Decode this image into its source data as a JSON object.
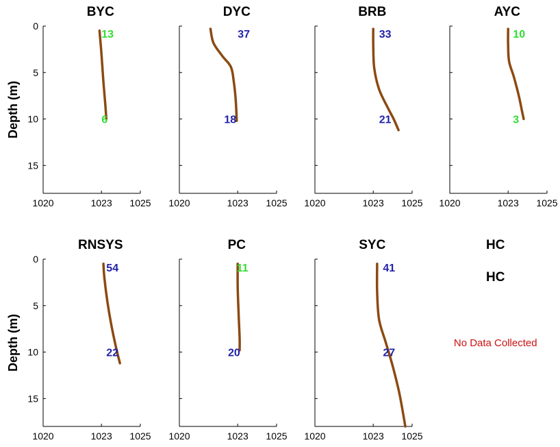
{
  "chart_data": {
    "type": "line",
    "ylabel": "Depth (m)",
    "y_reversed": true,
    "xlim": [
      1020,
      1025
    ],
    "ylim": [
      0,
      18
    ],
    "xticks": [
      1020,
      1023,
      1025
    ],
    "yticks": [
      0,
      5,
      10,
      15
    ],
    "line_color": "#8B4A12",
    "label_colors": {
      "green": "#33dd33",
      "blue": "#2222aa"
    },
    "no_data_color": "#cc1111",
    "panels": [
      {
        "title": "BYC",
        "points": [
          [
            1022.9,
            0.5
          ],
          [
            1023.0,
            3
          ],
          [
            1023.1,
            6
          ],
          [
            1023.2,
            8.5
          ],
          [
            1023.25,
            10
          ]
        ],
        "annotations": [
          {
            "text": "13",
            "x": 1023.0,
            "y": 0.8,
            "color": "green"
          },
          {
            "text": "6",
            "x": 1023.0,
            "y": 10.0,
            "color": "green"
          }
        ]
      },
      {
        "title": "DYC",
        "points": [
          [
            1021.6,
            0.3
          ],
          [
            1021.75,
            1.8
          ],
          [
            1022.2,
            3.2
          ],
          [
            1022.65,
            4.4
          ],
          [
            1022.8,
            6
          ],
          [
            1022.9,
            8
          ],
          [
            1022.95,
            10.2
          ]
        ],
        "annotations": [
          {
            "text": "37",
            "x": 1023.0,
            "y": 0.8,
            "color": "blue"
          },
          {
            "text": "18",
            "x": 1022.3,
            "y": 10.0,
            "color": "blue"
          }
        ]
      },
      {
        "title": "BRB",
        "points": [
          [
            1023.0,
            0.3
          ],
          [
            1023.0,
            2
          ],
          [
            1023.05,
            4.5
          ],
          [
            1023.3,
            6.8
          ],
          [
            1023.75,
            8.8
          ],
          [
            1024.05,
            10
          ],
          [
            1024.3,
            11.2
          ]
        ],
        "annotations": [
          {
            "text": "33",
            "x": 1023.3,
            "y": 0.8,
            "color": "blue"
          },
          {
            "text": "21",
            "x": 1023.3,
            "y": 10.0,
            "color": "blue"
          }
        ]
      },
      {
        "title": "AYC",
        "points": [
          [
            1023.0,
            0.3
          ],
          [
            1023.0,
            2
          ],
          [
            1023.05,
            3.8
          ],
          [
            1023.3,
            5.5
          ],
          [
            1023.55,
            7.5
          ],
          [
            1023.7,
            9
          ],
          [
            1023.8,
            10
          ]
        ],
        "annotations": [
          {
            "text": "10",
            "x": 1023.25,
            "y": 0.8,
            "color": "green"
          },
          {
            "text": "3",
            "x": 1023.25,
            "y": 10.0,
            "color": "green"
          }
        ]
      },
      {
        "title": "RNSYS",
        "points": [
          [
            1023.1,
            0.5
          ],
          [
            1023.15,
            2
          ],
          [
            1023.3,
            4.5
          ],
          [
            1023.5,
            7
          ],
          [
            1023.75,
            9.5
          ],
          [
            1023.95,
            11.2
          ]
        ],
        "annotations": [
          {
            "text": "54",
            "x": 1023.25,
            "y": 0.9,
            "color": "blue"
          },
          {
            "text": "22",
            "x": 1023.25,
            "y": 10.0,
            "color": "blue"
          }
        ]
      },
      {
        "title": "PC",
        "points": [
          [
            1023.0,
            0.5
          ],
          [
            1023.0,
            3
          ],
          [
            1023.05,
            6
          ],
          [
            1023.1,
            8.5
          ],
          [
            1023.1,
            9.8
          ]
        ],
        "annotations": [
          {
            "text": "11",
            "x": 1022.95,
            "y": 0.9,
            "color": "green"
          },
          {
            "text": "20",
            "x": 1022.5,
            "y": 10.0,
            "color": "blue"
          }
        ]
      },
      {
        "title": "SYC",
        "points": [
          [
            1023.2,
            0.5
          ],
          [
            1023.2,
            3.5
          ],
          [
            1023.3,
            6.5
          ],
          [
            1023.65,
            9
          ],
          [
            1024.0,
            11.5
          ],
          [
            1024.35,
            14.5
          ],
          [
            1024.65,
            18
          ]
        ],
        "annotations": [
          {
            "text": "41",
            "x": 1023.5,
            "y": 0.9,
            "color": "blue"
          },
          {
            "text": "27",
            "x": 1023.5,
            "y": 10.0,
            "color": "blue"
          }
        ]
      }
    ],
    "empty_panel": {
      "title": "HC",
      "subtitle": "HC",
      "message": "No Data Collected"
    }
  }
}
